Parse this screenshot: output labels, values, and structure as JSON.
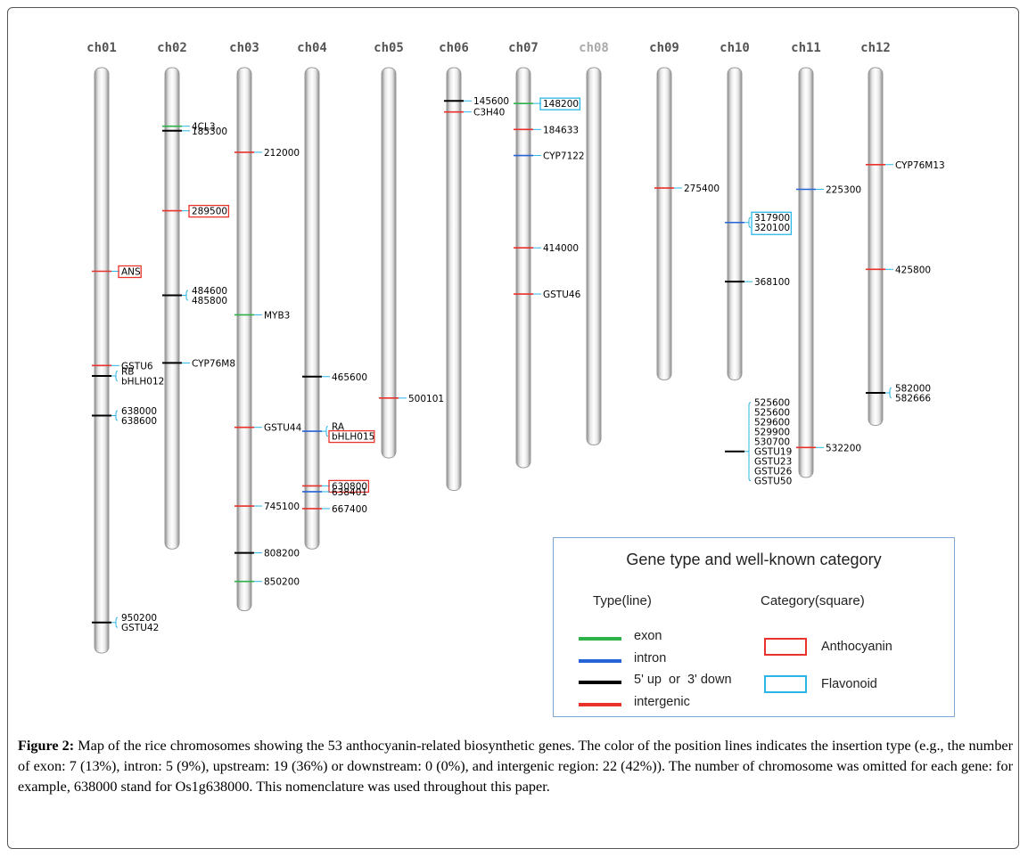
{
  "chromosomes": [
    {
      "name": "ch01",
      "color": "#555555",
      "len": 0.9,
      "genes": [
        {
          "pos": 0.313,
          "type": "intergenic",
          "labels": [
            "ANS"
          ],
          "category": "anthocyanin"
        },
        {
          "pos": 0.458,
          "type": "intergenic",
          "labels": [
            "GSTU6"
          ],
          "category": null
        },
        {
          "pos": 0.474,
          "type": "updown",
          "labels": [
            "RB",
            "bHLH012"
          ],
          "category": null
        },
        {
          "pos": 0.535,
          "type": "updown",
          "labels": [
            "638000",
            "638600"
          ],
          "category": null
        },
        {
          "pos": 0.853,
          "type": "updown",
          "labels": [
            "950200",
            "GSTU42"
          ],
          "category": null
        }
      ]
    },
    {
      "name": "ch02",
      "color": "#555555",
      "len": 0.74,
      "genes": [
        {
          "pos": 0.09,
          "type": "exon",
          "labels": [
            "4CL3"
          ],
          "category": null
        },
        {
          "pos": 0.097,
          "type": "updown",
          "labels": [
            "185300"
          ],
          "category": null
        },
        {
          "pos": 0.22,
          "type": "intergenic",
          "labels": [
            "289500"
          ],
          "category": "anthocyanin"
        },
        {
          "pos": 0.35,
          "type": "updown",
          "labels": [
            "484600",
            "485800"
          ],
          "category": null
        },
        {
          "pos": 0.454,
          "type": "updown",
          "labels": [
            "CYP76M8"
          ],
          "category": null
        }
      ]
    },
    {
      "name": "ch03",
      "color": "#555555",
      "len": 0.835,
      "genes": [
        {
          "pos": 0.13,
          "type": "intergenic",
          "labels": [
            "212000"
          ],
          "category": null
        },
        {
          "pos": 0.38,
          "type": "exon",
          "labels": [
            "MYB3"
          ],
          "category": null
        },
        {
          "pos": 0.553,
          "type": "intergenic",
          "labels": [
            "GSTU44"
          ],
          "category": null
        },
        {
          "pos": 0.674,
          "type": "intergenic",
          "labels": [
            "745100"
          ],
          "category": null
        },
        {
          "pos": 0.746,
          "type": "updown",
          "labels": [
            "808200"
          ],
          "category": null
        },
        {
          "pos": 0.79,
          "type": "exon",
          "labels": [
            "850200"
          ],
          "category": null
        }
      ]
    },
    {
      "name": "ch04",
      "color": "#555555",
      "len": 0.74,
      "genes": [
        {
          "pos": 0.475,
          "type": "updown",
          "labels": [
            "465600"
          ],
          "category": null
        },
        {
          "pos": 0.559,
          "type": "intron",
          "labels": [
            "RA",
            "bHLH015"
          ],
          "category": "anthocyanin2"
        },
        {
          "pos": 0.643,
          "type": "intergenic",
          "labels": [
            "630800"
          ],
          "category": "anthocyanin"
        },
        {
          "pos": 0.652,
          "type": "intron",
          "labels": [
            "638401"
          ],
          "category": null
        },
        {
          "pos": 0.678,
          "type": "intergenic",
          "labels": [
            "667400"
          ],
          "category": null
        }
      ]
    },
    {
      "name": "ch05",
      "color": "#555555",
      "len": 0.6,
      "genes": [
        {
          "pos": 0.508,
          "type": "intergenic",
          "labels": [
            "500101"
          ],
          "category": null
        }
      ]
    },
    {
      "name": "ch06",
      "color": "#555555",
      "len": 0.65,
      "genes": [
        {
          "pos": 0.051,
          "type": "updown",
          "labels": [
            "145600"
          ],
          "category": null
        },
        {
          "pos": 0.068,
          "type": "intergenic",
          "labels": [
            "C3H40"
          ],
          "category": null
        }
      ]
    },
    {
      "name": "ch07",
      "color": "#555555",
      "len": 0.615,
      "genes": [
        {
          "pos": 0.055,
          "type": "exon",
          "labels": [
            "148200"
          ],
          "category": "flavonoid"
        },
        {
          "pos": 0.095,
          "type": "intergenic",
          "labels": [
            "184633"
          ],
          "category": null
        },
        {
          "pos": 0.135,
          "type": "intron",
          "labels": [
            "CYP7122"
          ],
          "category": null
        },
        {
          "pos": 0.277,
          "type": "intergenic",
          "labels": [
            "414000"
          ],
          "category": null
        },
        {
          "pos": 0.348,
          "type": "intergenic",
          "labels": [
            "GSTU46"
          ],
          "category": null
        }
      ]
    },
    {
      "name": "ch08",
      "color": "#aaaaaa",
      "len": 0.58,
      "genes": []
    },
    {
      "name": "ch09",
      "color": "#555555",
      "len": 0.48,
      "genes": [
        {
          "pos": 0.185,
          "type": "intergenic",
          "labels": [
            "275400"
          ],
          "category": null
        }
      ]
    },
    {
      "name": "ch10",
      "color": "#555555",
      "len": 0.48,
      "genes": [
        {
          "pos": 0.238,
          "type": "intron",
          "labels": [
            "317900",
            "320100"
          ],
          "category": "flavonoid"
        },
        {
          "pos": 0.329,
          "type": "updown",
          "labels": [
            "368100"
          ],
          "category": null
        },
        {
          "pos": 0.59,
          "type": "updown",
          "labels": [
            "525600",
            "525600",
            "529600",
            "529900",
            "530700",
            "GSTU19",
            "GSTU23",
            "GSTU26",
            "GSTU50"
          ],
          "category": null
        }
      ]
    },
    {
      "name": "ch11",
      "color": "#555555",
      "len": 0.63,
      "genes": [
        {
          "pos": 0.187,
          "type": "intron",
          "labels": [
            "225300"
          ],
          "category": null
        },
        {
          "pos": 0.584,
          "type": "intergenic",
          "labels": [
            "532200"
          ],
          "category": null
        }
      ]
    },
    {
      "name": "ch12",
      "color": "#555555",
      "len": 0.55,
      "genes": [
        {
          "pos": 0.149,
          "type": "intergenic",
          "labels": [
            "CYP76M13"
          ],
          "category": null
        },
        {
          "pos": 0.31,
          "type": "intergenic",
          "labels": [
            "425800"
          ],
          "category": null
        },
        {
          "pos": 0.5,
          "type": "updown",
          "labels": [
            "582000",
            "582666"
          ],
          "category": null
        }
      ]
    }
  ],
  "type_colors": {
    "exon": "#2db34a",
    "intron": "#2563d6",
    "updown": "#000000",
    "intergenic": "#e8322b"
  },
  "category_colors": {
    "anthocyanin": "#e8322b",
    "flavonoid": "#29b6e6"
  },
  "legend": {
    "title": "Gene type and well-known category",
    "type_heading": "Type(line)",
    "category_heading": "Category(square)",
    "types": [
      {
        "label": "exon",
        "color": "#2db34a"
      },
      {
        "label": "intron",
        "color": "#2563d6"
      },
      {
        "label": "5' up  or  3' down",
        "color": "#000000"
      },
      {
        "label": "intergenic",
        "color": "#e8322b"
      }
    ],
    "categories": [
      {
        "label": "Anthocyanin",
        "color": "#e8322b"
      },
      {
        "label": "Flavonoid",
        "color": "#29b6e6"
      }
    ]
  },
  "caption": {
    "lead": "Figure 2:",
    "text": " Map of the rice chromosomes showing the 53 anthocyanin-related biosynthetic genes. The color of the position lines indicates the insertion type (e.g., the number of exon: 7 (13%), intron: 5 (9%), upstream: 19 (36%) or downstream: 0 (0%), and intergenic region: 22 (42%)). The number of chromosome was omitted for each gene: for example, 638000 stand for Os1g638000. This nomenclature was used throughout this paper."
  }
}
